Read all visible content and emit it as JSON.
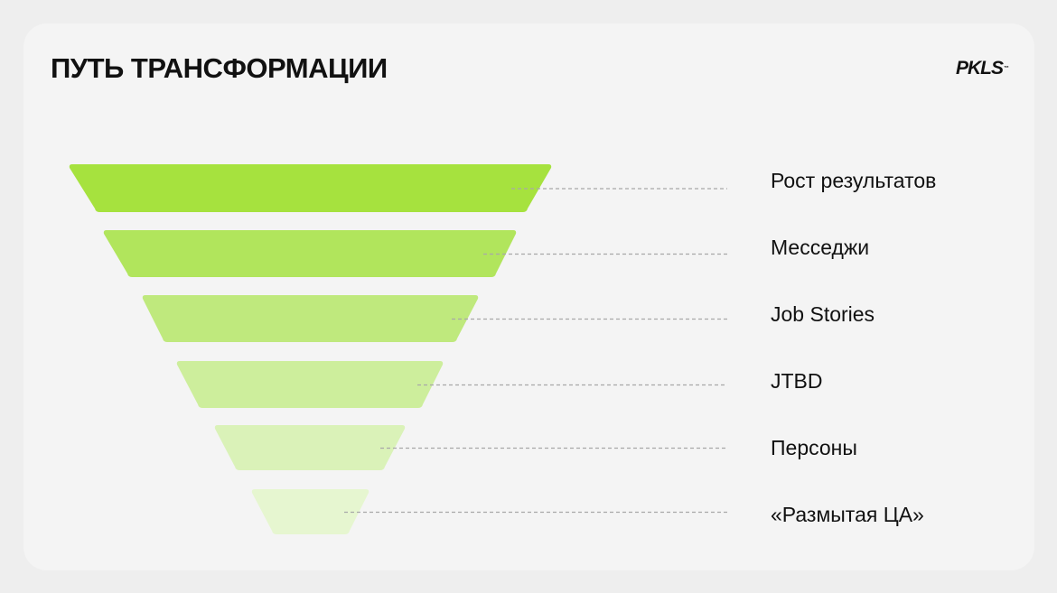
{
  "header": {
    "title": "ПУТЬ ТРАНСФОРМАЦИИ",
    "logo": "PKLS",
    "logo_tm": "™"
  },
  "funnel": {
    "stages": [
      {
        "label": "Рост результатов",
        "color": "#a6e23e"
      },
      {
        "label": "Месседжи",
        "color": "#b1e55c"
      },
      {
        "label": "Job Stories",
        "color": "#bfe97d"
      },
      {
        "label": "JTBD",
        "color": "#cdee9c"
      },
      {
        "label": "Персоны",
        "color": "#daf2b8"
      },
      {
        "label": "«Размытая ЦА»",
        "color": "#e6f6d0"
      }
    ],
    "connector_color": "#a8a8a8"
  },
  "colors": {
    "background": "#eeeeee",
    "card": "#f4f4f4",
    "text": "#111111"
  }
}
